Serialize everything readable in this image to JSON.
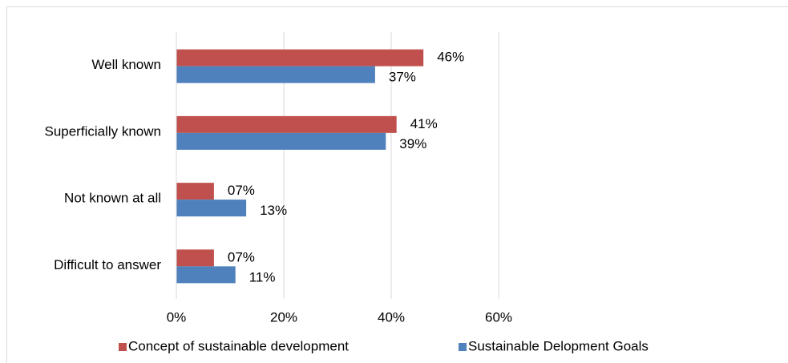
{
  "chart_data": {
    "type": "bar",
    "orientation": "horizontal",
    "categories": [
      "Well known",
      "Superficially known",
      "Not known at all",
      "Difficult to answer"
    ],
    "series": [
      {
        "name": "Concept of sustainable development",
        "color": "#c0504d",
        "values": [
          46,
          41,
          7,
          7
        ],
        "value_labels": [
          "46%",
          "41%",
          "07%",
          "07%"
        ]
      },
      {
        "name": "Sustainable Delopment Goals",
        "color": "#4f81bd",
        "values": [
          37,
          39,
          13,
          11
        ],
        "value_labels": [
          "37%",
          "39%",
          "13%",
          "11%"
        ]
      }
    ],
    "xlim": [
      0,
      60
    ],
    "xticks": [
      {
        "value": 0,
        "label": "0%"
      },
      {
        "value": 20,
        "label": "20%"
      },
      {
        "value": 40,
        "label": "40%"
      },
      {
        "value": 60,
        "label": "60%"
      }
    ],
    "grid": true,
    "legend": "bottom"
  }
}
